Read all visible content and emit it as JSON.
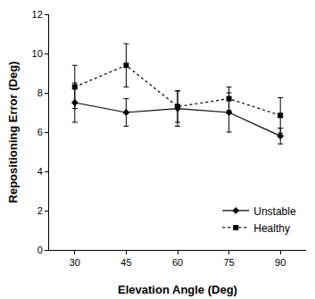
{
  "chart_data": {
    "type": "line",
    "x_label": "Elevation Angle (Deg)",
    "y_label": "Repositioning Error (Deg)",
    "x": [
      30,
      45,
      60,
      75,
      90
    ],
    "series": [
      {
        "name": "Unstable",
        "color": "#000000",
        "marker": "diamond",
        "line_style": "solid",
        "values": [
          7.5,
          7.0,
          7.2,
          7.0,
          5.8
        ],
        "errors": [
          1.0,
          0.7,
          0.9,
          1.0,
          0.4
        ]
      },
      {
        "name": "Healthy",
        "color": "#000000",
        "marker": "square",
        "line_style": "dot",
        "values": [
          8.3,
          9.4,
          7.3,
          7.7,
          6.85
        ],
        "errors": [
          1.1,
          1.1,
          0.8,
          0.6,
          0.9
        ]
      }
    ],
    "xlim": [
      22.5,
      97.5
    ],
    "xticks": [
      30,
      45,
      60,
      75,
      90
    ],
    "ylim": [
      0,
      12
    ],
    "yticks": [
      0,
      2,
      4,
      6,
      8,
      10,
      12
    ],
    "grid": false,
    "legend": "lower right"
  }
}
